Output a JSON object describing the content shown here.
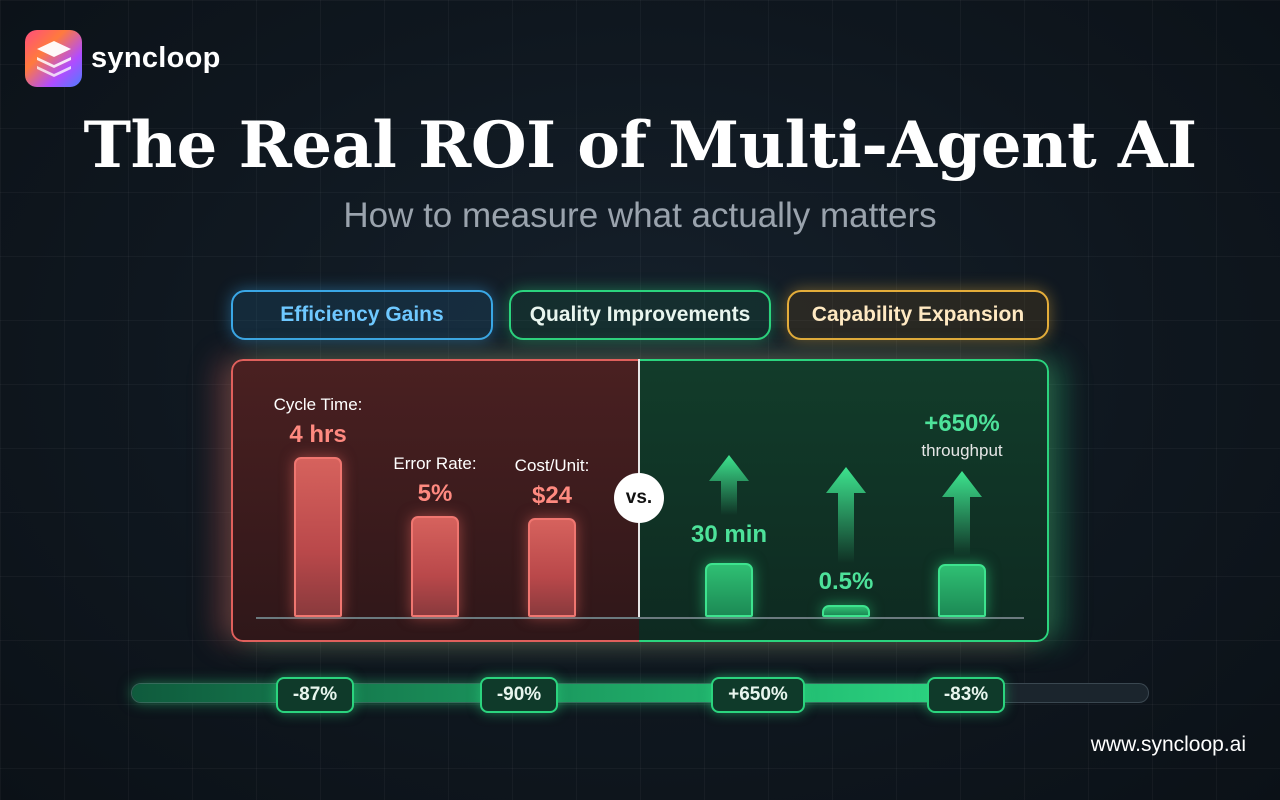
{
  "brand": {
    "name": "syncloop",
    "url": "www.syncloop.ai",
    "icon": "layers-icon"
  },
  "title": "The Real ROI of Multi-Agent AI",
  "subtitle": "How to measure what actually matters",
  "tabs": [
    {
      "label": "Efficiency Gains",
      "color": "#3aa7e6"
    },
    {
      "label": "Quality Improvements",
      "color": "#2bd47e"
    },
    {
      "label": "Capability Expansion",
      "color": "#e4ad3a"
    }
  ],
  "vs_label": "vs.",
  "chart_data": {
    "type": "bar",
    "before": {
      "color": "#e0605c",
      "bars": [
        {
          "label": "Cycle Time:",
          "value_label": "4 hrs",
          "height": 1.0
        },
        {
          "label": "Error Rate:",
          "value_label": "5%",
          "height": 0.63
        },
        {
          "label": "Cost/Unit:",
          "value_label": "$24",
          "height": 0.62
        }
      ]
    },
    "after": {
      "color": "#2bd47e",
      "bars": [
        {
          "value_label": "30 min",
          "height": 0.34,
          "arrow": "up-arrow-icon"
        },
        {
          "value_label": "0.5%",
          "height": 0.07,
          "arrow": "up-arrow-icon"
        },
        {
          "value_label": "+650%",
          "sub_label": "throughput",
          "height": 0.33,
          "arrow": "up-arrow-icon"
        }
      ]
    },
    "progress": {
      "fill": 0.85,
      "markers": [
        "-87%",
        "-90%",
        "+650%",
        "-83%"
      ]
    }
  }
}
